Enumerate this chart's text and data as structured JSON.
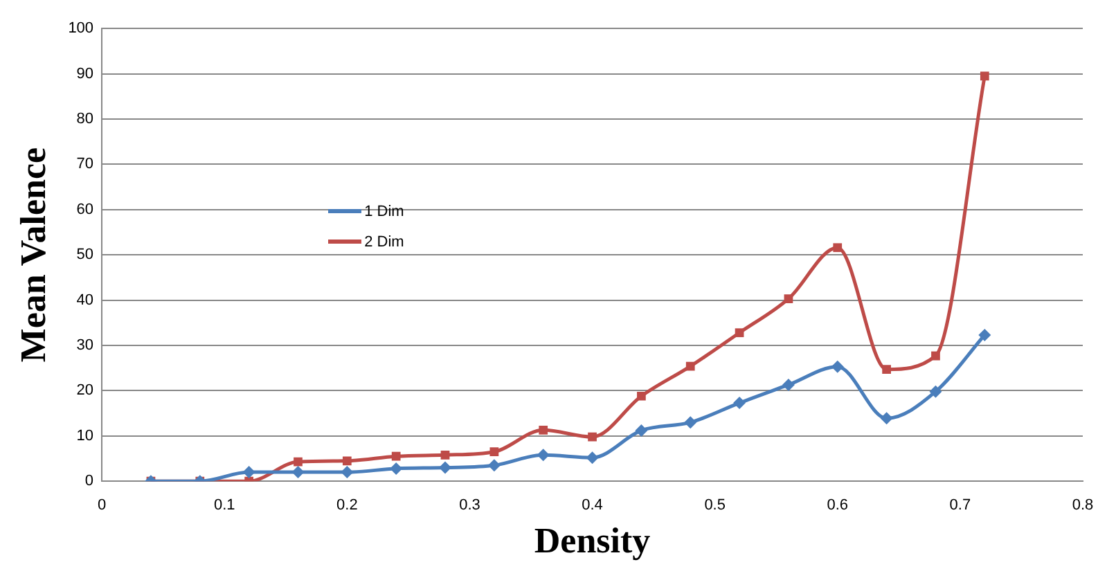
{
  "chart_data": {
    "type": "line",
    "xlabel": "Density",
    "ylabel": "Mean Valence",
    "x": [
      0.04,
      0.08,
      0.12,
      0.16,
      0.2,
      0.24,
      0.28,
      0.32,
      0.36,
      0.4,
      0.44,
      0.48,
      0.52,
      0.56,
      0.6,
      0.64,
      0.68,
      0.72
    ],
    "series": [
      {
        "name": "1 Dim",
        "color": "#4a7ebb",
        "marker": "diamond",
        "values": [
          0,
          0,
          2,
          2,
          2,
          2.8,
          3,
          3.5,
          5.8,
          5.2,
          11.2,
          13,
          17.3,
          21.3,
          25.3,
          13.9,
          19.8,
          32.3
        ]
      },
      {
        "name": "2 Dim",
        "color": "#be4b48",
        "marker": "square",
        "values": [
          0,
          0,
          0,
          4.3,
          4.5,
          5.5,
          5.8,
          6.5,
          11.3,
          9.8,
          18.8,
          25.4,
          32.8,
          40.3,
          51.6,
          24.7,
          27.7,
          89.5
        ]
      }
    ],
    "xlim": [
      0,
      0.8
    ],
    "xticks": [
      0,
      0.1,
      0.2,
      0.3,
      0.4,
      0.5,
      0.6,
      0.7,
      0.8
    ],
    "ylim": [
      0,
      100
    ],
    "yticks": [
      0,
      10,
      20,
      30,
      40,
      50,
      60,
      70,
      80,
      90,
      100
    ],
    "grid": "y",
    "legend": "left",
    "line_style": "solid"
  }
}
